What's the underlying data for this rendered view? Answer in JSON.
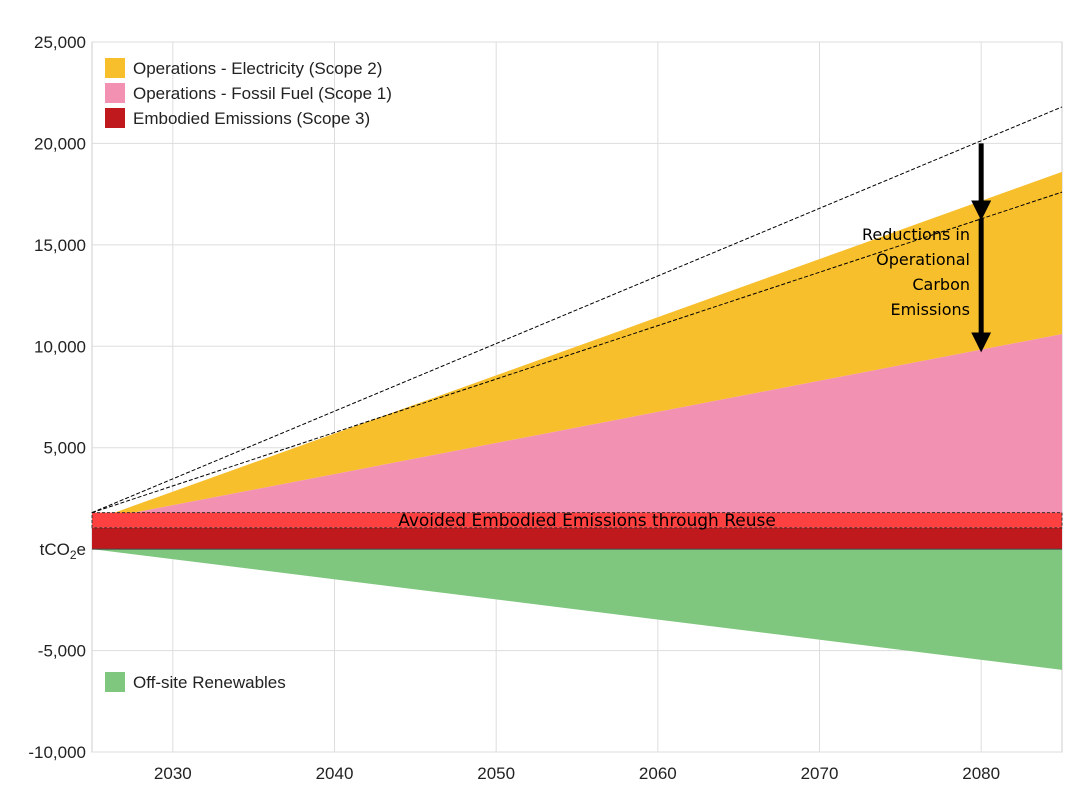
{
  "chart_data": {
    "type": "area",
    "x_range": [
      2025,
      2085
    ],
    "ylim": [
      -10000,
      25000
    ],
    "x_ticks": [
      "2030",
      "2040",
      "2050",
      "2060",
      "2070",
      "2080"
    ],
    "y_ticks": [
      "25,000",
      "20,000",
      "15,000",
      "10,000",
      "5,000",
      "tCO2e",
      "-5,000",
      "-10,000"
    ],
    "y_tick_values": [
      25000,
      20000,
      15000,
      10000,
      5000,
      0,
      -5000,
      -10000
    ],
    "grid": true,
    "legend_position": "top-left",
    "series": [
      {
        "name": "Operations - Electricity (Scope 2)",
        "color": "#F8BF2C",
        "x": [
          2025,
          2085
        ],
        "bottom": [
          1400,
          10600
        ],
        "top": [
          1400,
          18600
        ]
      },
      {
        "name": "Operations - Fossil Fuel (Scope 1)",
        "color": "#F291B2",
        "x": [
          2025,
          2085
        ],
        "bottom": [
          1400,
          1400
        ],
        "top": [
          1400,
          10600
        ]
      },
      {
        "name": "Embodied Emissions (Scope 3)",
        "color": "#C0191D",
        "x": [
          2025,
          2085
        ],
        "bottom": [
          0,
          0
        ],
        "top": [
          1050,
          1050
        ]
      },
      {
        "name": "Off-site Renewables",
        "color": "#7FC77F",
        "x": [
          2025,
          2085
        ],
        "bottom": [
          0,
          -5950
        ],
        "top": [
          0,
          0
        ]
      }
    ],
    "reuse_band": {
      "label": "Avoided Embodied Emissions through Reuse",
      "color": "#FF4040",
      "from": 1050,
      "to": 1800
    },
    "dashed_lines": [
      {
        "x": [
          2025,
          2085
        ],
        "y": [
          1800,
          21800
        ]
      },
      {
        "x": [
          2025,
          2085
        ],
        "y": [
          1800,
          17600
        ]
      }
    ],
    "annotation": {
      "lines": [
        "Reductions in",
        "Operational",
        "Carbon",
        "Emissions"
      ],
      "arrow_x": 2080,
      "arrow_from": 20000,
      "arrow_mid": 16300,
      "arrow_to": 9800
    },
    "legend_top": [
      "Operations - Electricity (Scope 2)",
      "Operations - Fossil Fuel (Scope 1)",
      "Embodied Emissions (Scope 3)"
    ],
    "legend_bottom": [
      "Off-site Renewables"
    ]
  }
}
